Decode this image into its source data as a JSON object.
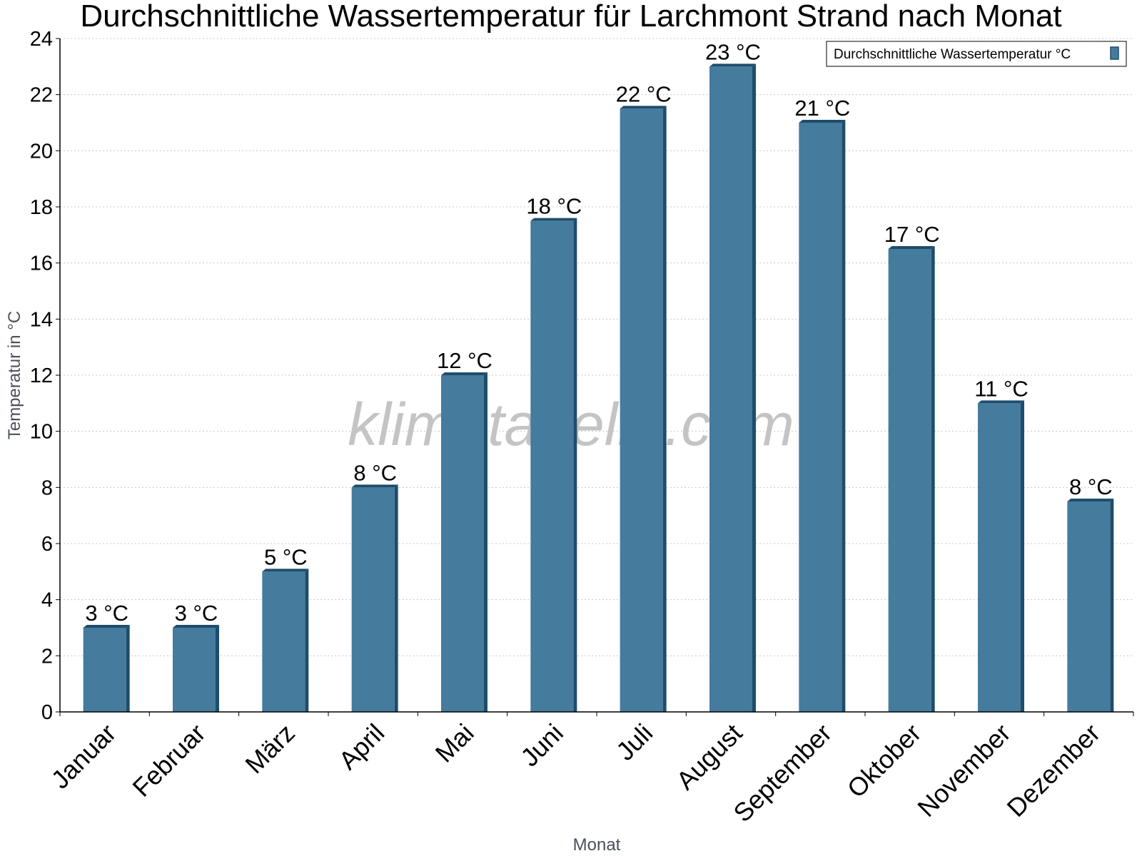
{
  "chart_data": {
    "type": "bar",
    "title": "Durchschnittliche Wassertemperatur für Larchmont Strand nach Monat",
    "xlabel": "Monat",
    "ylabel": "Temperatur in °C",
    "ylim": [
      0,
      24
    ],
    "ytick_step": 2,
    "grid": true,
    "legend_position": "top-right",
    "categories": [
      "Januar",
      "Februar",
      "März",
      "April",
      "Mai",
      "Juni",
      "Juli",
      "August",
      "September",
      "Oktober",
      "November",
      "Dezember"
    ],
    "series": [
      {
        "name": "Durchschnittliche Wassertemperatur °C",
        "color": "#457b9d",
        "values": [
          3,
          3,
          5,
          8,
          12,
          17.5,
          21.5,
          23,
          21,
          16.5,
          11,
          7.5
        ],
        "labels": [
          "3 °C",
          "3 °C",
          "5 °C",
          "8 °C",
          "12 °C",
          "18 °C",
          "22 °C",
          "23 °C",
          "21 °C",
          "17 °C",
          "11 °C",
          "8 °C"
        ]
      }
    ],
    "watermark": "klimatabelle.com"
  }
}
